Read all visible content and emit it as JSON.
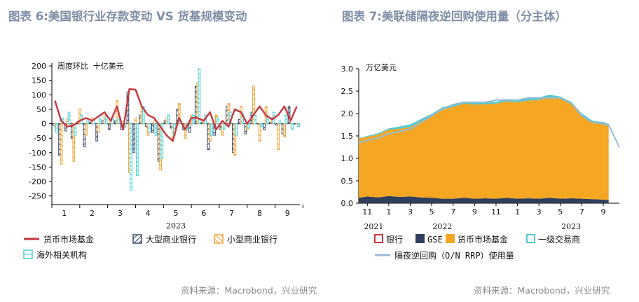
{
  "titles": {
    "left": "图表 6:美国银行业存款变动 VS 货基规模变动",
    "right": "图表 7:美联储隔夜逆回购使用量（分主体）"
  },
  "sources": {
    "left": "资料来源：Macrobond，兴业研究",
    "right": "资料来源：Macrobond，兴业研究"
  },
  "colors": {
    "line_red": "#c8363d",
    "large_bank": "#3d4a66",
    "small_bank": "#f0a335",
    "foreign": "#4fd1d9",
    "bank_red": "#c23b3b",
    "gse": "#2f3f5c",
    "mmf": "#f5a623",
    "dealer": "#56c9d1",
    "rrp_line": "#93bcd8"
  },
  "chart_data": [
    {
      "type": "bar",
      "unit_label": "周度环比 十亿美元",
      "ylim": [
        -280,
        210
      ],
      "yticks": [
        -250,
        -200,
        -150,
        -100,
        -50,
        0,
        50,
        100,
        150,
        200
      ],
      "x_tick_labels": [
        "1",
        "2",
        "3",
        "4",
        "5",
        "6",
        "7",
        "8",
        "9"
      ],
      "x_tick_weeks": [
        2,
        6.5,
        11,
        15.5,
        20,
        24.5,
        29,
        33.5,
        38
      ],
      "x_boundary_weeks": [
        0,
        4.5,
        9,
        13.5,
        18,
        22.5,
        27,
        31.5,
        36,
        40.5
      ],
      "year_label": "2023",
      "weeks": 40,
      "series": [
        {
          "name": "货币市场基金",
          "kind": "line",
          "values": [
            80,
            10,
            -10,
            -5,
            10,
            20,
            10,
            25,
            40,
            10,
            60,
            -20,
            120,
            118,
            60,
            30,
            20,
            -10,
            -40,
            -60,
            20,
            -20,
            20,
            20,
            10,
            40,
            -20,
            10,
            -10,
            50,
            40,
            0,
            30,
            60,
            30,
            15,
            30,
            60,
            10,
            60
          ]
        },
        {
          "name": "大型商业银行",
          "kind": "bar",
          "values": [
            -5,
            -110,
            -25,
            -50,
            8,
            -80,
            5,
            -60,
            10,
            -20,
            10,
            -20,
            110,
            -100,
            30,
            -10,
            -30,
            -130,
            10,
            -15,
            50,
            -20,
            -30,
            130,
            5,
            -90,
            -40,
            -20,
            60,
            -100,
            15,
            -35,
            40,
            0,
            -20,
            5,
            -5,
            -35,
            60,
            0
          ]
        },
        {
          "name": "小型商业银行",
          "kind": "bar",
          "values": [
            -10,
            -140,
            20,
            -130,
            50,
            -40,
            20,
            -30,
            30,
            10,
            80,
            -5,
            -170,
            20,
            60,
            -40,
            10,
            -160,
            20,
            -50,
            70,
            -50,
            30,
            140,
            15,
            -60,
            30,
            -40,
            70,
            -110,
            60,
            -20,
            130,
            -60,
            60,
            20,
            -90,
            -45,
            0,
            0
          ]
        },
        {
          "name": "海外相关机构",
          "kind": "bar",
          "values": [
            -30,
            20,
            40,
            -40,
            30,
            10,
            15,
            30,
            25,
            20,
            20,
            -10,
            -230,
            -180,
            60,
            -30,
            -40,
            -120,
            30,
            -40,
            10,
            -20,
            30,
            190,
            30,
            -40,
            20,
            -20,
            40,
            -40,
            35,
            -15,
            30,
            -10,
            20,
            40,
            10,
            30,
            -20,
            -10
          ]
        }
      ],
      "legend": [
        "货币市场基金",
        "大型商业银行",
        "小型商业银行",
        "海外相关机构"
      ]
    },
    {
      "type": "area",
      "unit_label": "万亿美元",
      "ylim": [
        0,
        3.0
      ],
      "yticks": [
        0.0,
        0.5,
        1.0,
        1.5,
        2.0,
        2.5,
        3.0
      ],
      "x_tick_labels": [
        "11",
        "1",
        "3",
        "5",
        "7",
        "9",
        "11",
        "1",
        "3",
        "5",
        "7",
        "9"
      ],
      "x_tick_months": [
        0,
        2,
        4,
        6,
        8,
        10,
        12,
        14,
        16,
        18,
        20,
        22
      ],
      "x_range_months": [
        -0.8,
        23.5
      ],
      "year_labels": [
        {
          "label": "2021",
          "month": 0.6
        },
        {
          "label": "2022",
          "month": 7
        },
        {
          "label": "2023",
          "month": 19
        }
      ],
      "months": [
        -0.8,
        0,
        1,
        2,
        3,
        4,
        5,
        6,
        7,
        8,
        9,
        10,
        11,
        12,
        13,
        14,
        15,
        16,
        17,
        18,
        19,
        20,
        21,
        22,
        22.5,
        23,
        23.5
      ],
      "series": [
        {
          "name": "货币市场基金",
          "kind": "area",
          "values": [
            1.32,
            1.33,
            1.4,
            1.48,
            1.52,
            1.55,
            1.7,
            1.82,
            1.98,
            2.05,
            2.1,
            2.1,
            2.1,
            2.12,
            2.15,
            2.15,
            2.18,
            2.2,
            2.25,
            2.23,
            2.1,
            1.85,
            1.7,
            1.68,
            1.65,
            null,
            null
          ]
        },
        {
          "name": "GSE",
          "kind": "area",
          "values": [
            0.12,
            0.15,
            0.13,
            0.16,
            0.14,
            0.15,
            0.13,
            0.12,
            0.1,
            0.1,
            0.12,
            0.1,
            0.11,
            0.1,
            0.12,
            0.1,
            0.11,
            0.1,
            0.12,
            0.1,
            0.11,
            0.1,
            0.09,
            0.08,
            0.07,
            null,
            null
          ]
        },
        {
          "name": "一级交易商",
          "kind": "area",
          "values": [
            0.01,
            0.02,
            0.03,
            0.03,
            0.05,
            0.06,
            0.05,
            0.05,
            0.06,
            0.05,
            0.05,
            0.04,
            0.05,
            0.04,
            0.05,
            0.06,
            0.05,
            0.06,
            0.05,
            0.05,
            0.05,
            0.05,
            0.05,
            0.05,
            0.05,
            null,
            null
          ]
        },
        {
          "name": "银行",
          "kind": "area",
          "values": [
            0.0,
            0.0,
            0.0,
            0.0,
            0.0,
            0.0,
            0.0,
            0.0,
            0.0,
            0.0,
            0.0,
            0.0,
            0.0,
            0.0,
            0.0,
            0.0,
            0.0,
            0.0,
            0.0,
            0.0,
            0.0,
            0.0,
            0.0,
            0.0,
            0.0,
            null,
            null
          ]
        },
        {
          "name": "隔夜逆回购（O/N RRP）使用量",
          "kind": "line",
          "values": [
            1.35,
            1.4,
            1.45,
            1.55,
            1.6,
            1.65,
            1.8,
            1.95,
            2.1,
            2.2,
            2.25,
            2.25,
            2.25,
            2.3,
            2.3,
            2.3,
            2.35,
            2.35,
            2.35,
            2.35,
            2.25,
            1.95,
            1.8,
            1.8,
            1.75,
            1.5,
            1.25
          ]
        }
      ],
      "legend": [
        "银行",
        "GSE",
        "货币市场基金",
        "一级交易商",
        "隔夜逆回购（O/N RRP）使用量"
      ]
    }
  ]
}
